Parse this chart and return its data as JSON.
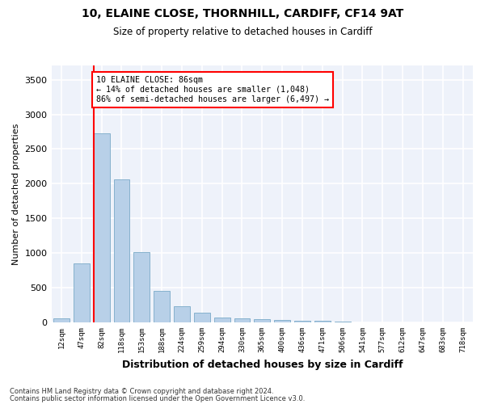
{
  "title1": "10, ELAINE CLOSE, THORNHILL, CARDIFF, CF14 9AT",
  "title2": "Size of property relative to detached houses in Cardiff",
  "xlabel": "Distribution of detached houses by size in Cardiff",
  "ylabel": "Number of detached properties",
  "bar_color": "#b8d0e8",
  "bar_edge_color": "#7aaac8",
  "background_color": "#eef2fa",
  "grid_color": "#ffffff",
  "categories": [
    "12sqm",
    "47sqm",
    "82sqm",
    "118sqm",
    "153sqm",
    "188sqm",
    "224sqm",
    "259sqm",
    "294sqm",
    "330sqm",
    "365sqm",
    "400sqm",
    "436sqm",
    "471sqm",
    "506sqm",
    "541sqm",
    "577sqm",
    "612sqm",
    "647sqm",
    "683sqm",
    "718sqm"
  ],
  "values": [
    60,
    850,
    2730,
    2060,
    1010,
    455,
    230,
    140,
    65,
    55,
    50,
    35,
    25,
    20,
    10,
    5,
    3,
    2,
    1,
    1,
    0
  ],
  "red_line_index": 2,
  "annotation_text": "10 ELAINE CLOSE: 86sqm\n← 14% of detached houses are smaller (1,048)\n86% of semi-detached houses are larger (6,497) →",
  "ylim": [
    0,
    3700
  ],
  "yticks": [
    0,
    500,
    1000,
    1500,
    2000,
    2500,
    3000,
    3500
  ],
  "footnote1": "Contains HM Land Registry data © Crown copyright and database right 2024.",
  "footnote2": "Contains public sector information licensed under the Open Government Licence v3.0."
}
